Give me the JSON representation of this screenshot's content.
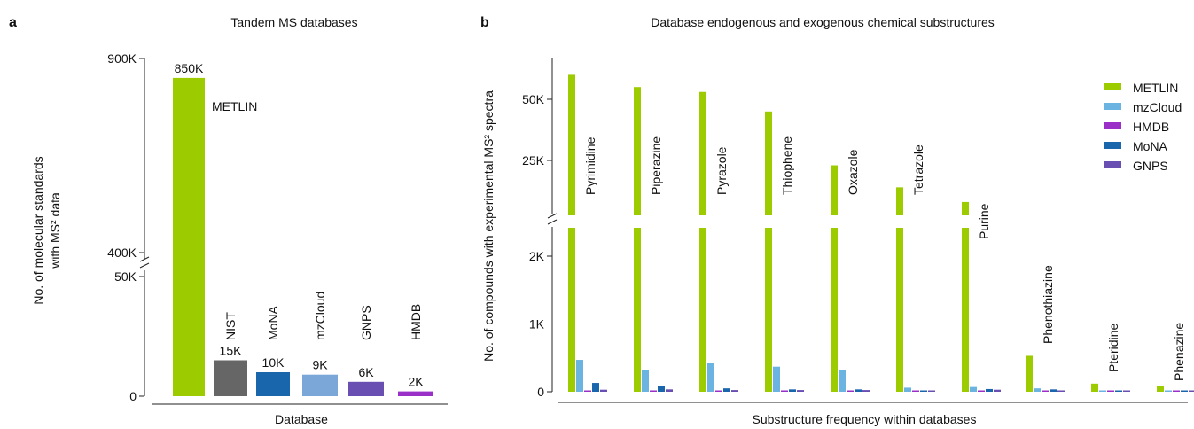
{
  "panel_a": {
    "letter": "a",
    "title": "Tandem MS databases",
    "ylabel_line1": "No. of molecular standards",
    "ylabel_line2": "with MS² data",
    "xlabel": "Database"
  },
  "panel_b": {
    "letter": "b",
    "title": "Database endogenous and exogenous chemical substructures",
    "ylabel": "No. of compounds with experimental MS² spectra",
    "xlabel": "Substructure frequency within databases"
  },
  "chart_data": [
    {
      "type": "bar",
      "title": "Tandem MS databases",
      "xlabel": "Database",
      "ylabel": "No. of molecular standards with MS² data",
      "broken_axis": {
        "lower": [
          0,
          50000
        ],
        "upper": [
          400000,
          900000
        ]
      },
      "yticks": [
        {
          "value": 0,
          "label": "0"
        },
        {
          "value": 50000,
          "label": "50K"
        },
        {
          "value": 400000,
          "label": "400K"
        },
        {
          "value": 900000,
          "label": "900K"
        }
      ],
      "categories": [
        "METLIN",
        "NIST",
        "MoNA",
        "mzCloud",
        "GNPS",
        "HMDB"
      ],
      "values": [
        850000,
        15000,
        10000,
        9000,
        6000,
        2000
      ],
      "value_labels": [
        "850K",
        "15K",
        "10K",
        "9K",
        "6K",
        "2K"
      ],
      "colors": [
        "#9ccc00",
        "#666666",
        "#1a66ad",
        "#7aa7d8",
        "#6a4fb3",
        "#9b30c9"
      ]
    },
    {
      "type": "bar",
      "title": "Database endogenous and exogenous chemical substructures",
      "xlabel": "Substructure frequency within databases",
      "ylabel": "No. of compounds with experimental MS² spectra",
      "broken_axis": {
        "lower": [
          0,
          2400
        ],
        "upper": [
          2400,
          65000
        ]
      },
      "yticks": [
        {
          "value": 0,
          "label": "0"
        },
        {
          "value": 1000,
          "label": "1K"
        },
        {
          "value": 2000,
          "label": "2K"
        },
        {
          "value": 25000,
          "label": "25K"
        },
        {
          "value": 50000,
          "label": "50K"
        }
      ],
      "categories": [
        "Pyrimidine",
        "Piperazine",
        "Pyrazole",
        "Thiophene",
        "Oxazole",
        "Tetrazole",
        "Purine",
        "Phenothiazine",
        "Pteridine",
        "Phenazine"
      ],
      "series": [
        {
          "name": "METLIN",
          "color": "#9ccc00",
          "values": [
            60000,
            55000,
            53000,
            45000,
            23000,
            14000,
            8000,
            530,
            120,
            90
          ]
        },
        {
          "name": "mzCloud",
          "color": "#6bb3e0",
          "values": [
            470,
            320,
            420,
            370,
            320,
            60,
            70,
            50,
            15,
            12
          ]
        },
        {
          "name": "HMDB",
          "color": "#9b30c9",
          "values": [
            15,
            20,
            15,
            20,
            15,
            10,
            10,
            10,
            8,
            8
          ]
        },
        {
          "name": "MoNA",
          "color": "#1a66ad",
          "values": [
            130,
            80,
            50,
            35,
            35,
            15,
            40,
            35,
            10,
            8
          ]
        },
        {
          "name": "GNPS",
          "color": "#6a4fb3",
          "values": [
            30,
            35,
            25,
            25,
            25,
            10,
            30,
            20,
            8,
            8
          ]
        }
      ],
      "legend": "top-right"
    }
  ]
}
